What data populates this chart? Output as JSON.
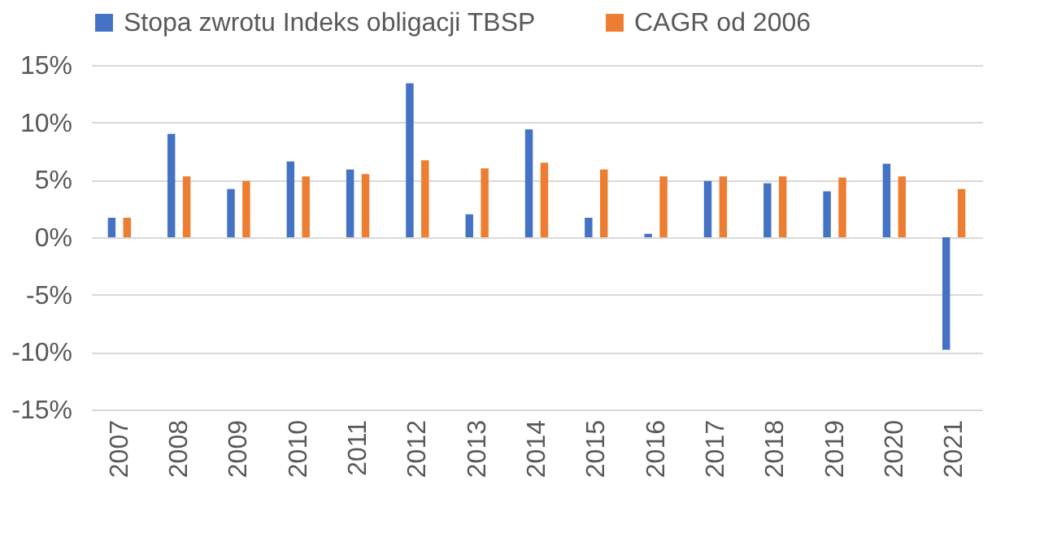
{
  "chart_data": {
    "type": "bar",
    "categories": [
      "2007",
      "2008",
      "2009",
      "2010",
      "2011",
      "2012",
      "2013",
      "2014",
      "2015",
      "2016",
      "2017",
      "2018",
      "2019",
      "2020",
      "2021"
    ],
    "series": [
      {
        "name": "Stopa zwrotu Indeks obligacji TBSP",
        "color": "#4472c4",
        "values": [
          1.7,
          9.0,
          4.2,
          6.6,
          5.9,
          13.4,
          2.0,
          9.4,
          1.7,
          0.3,
          4.9,
          4.7,
          4.0,
          6.4,
          -9.8
        ]
      },
      {
        "name": "CAGR od 2006",
        "color": "#ed7d31",
        "values": [
          1.7,
          5.3,
          4.9,
          5.3,
          5.5,
          6.7,
          6.0,
          6.5,
          5.9,
          5.3,
          5.3,
          5.3,
          5.2,
          5.3,
          4.2
        ]
      }
    ],
    "ylim": [
      -15,
      15
    ],
    "yticks": [
      {
        "value": -15,
        "label": "-15%"
      },
      {
        "value": -10,
        "label": "-10%"
      },
      {
        "value": -5,
        "label": "-5%"
      },
      {
        "value": 0,
        "label": "0%"
      },
      {
        "value": 5,
        "label": "5%"
      },
      {
        "value": 10,
        "label": "10%"
      },
      {
        "value": 15,
        "label": "15%"
      }
    ],
    "grid": "y",
    "legend": "top"
  }
}
